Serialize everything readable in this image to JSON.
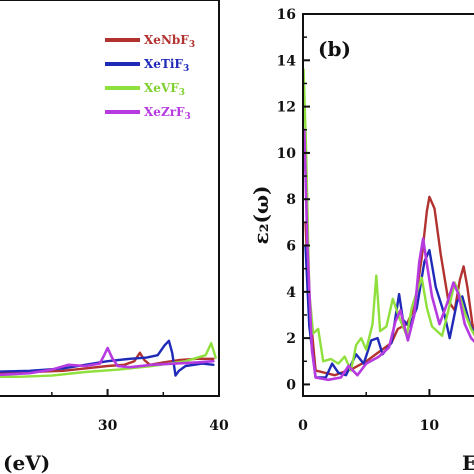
{
  "chart_data": [
    {
      "type": "line",
      "panel_label": "",
      "xlabel": "(eV)",
      "ylabel": "",
      "xlim": [
        19,
        40
      ],
      "ylim": [
        -0.5,
        16
      ],
      "x_ticks": [
        30,
        40
      ],
      "legend": {
        "placement": "top-right"
      },
      "colors": {
        "XeNbF3": "#b2322f",
        "XeTiF3": "#1f2ab8",
        "XeVF3": "#8fe03c",
        "XeZrF3": "#b63ae0"
      },
      "series": [
        {
          "name": "XeNbF3",
          "color": "#b2322f",
          "width": 2.4,
          "points": [
            [
              19,
              0.45
            ],
            [
              23,
              0.5
            ],
            [
              26,
              0.55
            ],
            [
              28,
              0.65
            ],
            [
              30,
              0.75
            ],
            [
              31.5,
              0.8
            ],
            [
              32.4,
              0.95
            ],
            [
              32.9,
              1.3
            ],
            [
              33.3,
              1.0
            ],
            [
              33.8,
              0.8
            ],
            [
              35,
              0.9
            ],
            [
              36.5,
              1.0
            ],
            [
              38,
              1.05
            ],
            [
              39.5,
              1.05
            ]
          ]
        },
        {
          "name": "XeTiF3",
          "color": "#1f2ab8",
          "width": 2.4,
          "points": [
            [
              19,
              0.5
            ],
            [
              23,
              0.55
            ],
            [
              26,
              0.65
            ],
            [
              28,
              0.8
            ],
            [
              30,
              0.95
            ],
            [
              32,
              1.05
            ],
            [
              33.5,
              1.1
            ],
            [
              34.5,
              1.2
            ],
            [
              35.1,
              1.6
            ],
            [
              35.5,
              1.8
            ],
            [
              35.8,
              1.3
            ],
            [
              36.1,
              0.35
            ],
            [
              36.4,
              0.55
            ],
            [
              37,
              0.75
            ],
            [
              38.5,
              0.85
            ],
            [
              39.5,
              0.8
            ]
          ]
        },
        {
          "name": "XeVF3",
          "color": "#8fe03c",
          "width": 2.4,
          "points": [
            [
              19,
              0.3
            ],
            [
              22,
              0.3
            ],
            [
              25,
              0.35
            ],
            [
              28,
              0.5
            ],
            [
              31,
              0.6
            ],
            [
              34,
              0.75
            ],
            [
              37,
              0.95
            ],
            [
              38.8,
              1.2
            ],
            [
              39.3,
              1.7
            ],
            [
              39.7,
              1.1
            ]
          ]
        },
        {
          "name": "XeZrF3",
          "color": "#b63ae0",
          "width": 2.6,
          "points": [
            [
              19,
              0.35
            ],
            [
              21,
              0.4
            ],
            [
              23,
              0.45
            ],
            [
              25,
              0.6
            ],
            [
              26.5,
              0.8
            ],
            [
              28,
              0.75
            ],
            [
              29.3,
              0.85
            ],
            [
              29.7,
              1.2
            ],
            [
              30,
              1.5
            ],
            [
              30.4,
              1.1
            ],
            [
              30.9,
              0.75
            ],
            [
              32,
              0.7
            ],
            [
              34,
              0.8
            ],
            [
              36,
              0.85
            ],
            [
              38,
              0.9
            ],
            [
              39.5,
              0.95
            ]
          ]
        }
      ]
    },
    {
      "type": "line",
      "panel_label": "(b)",
      "xlabel": "E",
      "ylabel": "ε₂(ω)",
      "xlim": [
        0,
        14
      ],
      "ylim": [
        -0.5,
        16
      ],
      "x_ticks": [
        0,
        10
      ],
      "y_ticks": [
        0,
        2,
        4,
        6,
        8,
        10,
        12,
        14,
        16
      ],
      "series": [
        {
          "name": "XeNbF3",
          "color": "#b2322f",
          "width": 2.4,
          "points": [
            [
              0.2,
              7
            ],
            [
              0.5,
              3.5
            ],
            [
              1.0,
              0.6
            ],
            [
              2.5,
              0.4
            ],
            [
              4,
              0.7
            ],
            [
              5,
              1.0
            ],
            [
              6,
              1.4
            ],
            [
              7,
              1.8
            ],
            [
              7.5,
              2.4
            ],
            [
              8.2,
              2.6
            ],
            [
              8.8,
              3.3
            ],
            [
              9.4,
              5.5
            ],
            [
              9.8,
              7.5
            ],
            [
              10,
              8.1
            ],
            [
              10.4,
              7.6
            ],
            [
              10.9,
              5.6
            ],
            [
              11.5,
              3.6
            ],
            [
              12.0,
              3.2
            ],
            [
              12.4,
              4.5
            ],
            [
              12.7,
              5.1
            ],
            [
              13.0,
              4.2
            ],
            [
              13.4,
              2.6
            ],
            [
              14,
              1.9
            ]
          ]
        },
        {
          "name": "XeTiF3",
          "color": "#1f2ab8",
          "width": 2.4,
          "points": [
            [
              0.2,
              6
            ],
            [
              0.5,
              2.5
            ],
            [
              1.0,
              0.3
            ],
            [
              1.8,
              0.3
            ],
            [
              2.3,
              0.9
            ],
            [
              2.8,
              0.5
            ],
            [
              3.4,
              0.4
            ],
            [
              4.2,
              1.3
            ],
            [
              4.8,
              0.9
            ],
            [
              5.4,
              1.9
            ],
            [
              5.9,
              2.0
            ],
            [
              6.3,
              1.3
            ],
            [
              7,
              1.8
            ],
            [
              7.6,
              3.9
            ],
            [
              7.9,
              2.8
            ],
            [
              8.4,
              2.5
            ],
            [
              9.0,
              3.3
            ],
            [
              9.6,
              5.3
            ],
            [
              10.0,
              5.8
            ],
            [
              10.5,
              4.2
            ],
            [
              11.2,
              3.0
            ],
            [
              11.6,
              2.0
            ],
            [
              12.2,
              3.6
            ],
            [
              12.6,
              3.8
            ],
            [
              13.2,
              2.6
            ],
            [
              14,
              1.7
            ]
          ]
        },
        {
          "name": "XeVF3",
          "color": "#8fe03c",
          "width": 2.4,
          "points": [
            [
              0.05,
              13.6
            ],
            [
              0.25,
              10
            ],
            [
              0.5,
              4
            ],
            [
              0.8,
              2.2
            ],
            [
              1.2,
              2.4
            ],
            [
              1.6,
              1.0
            ],
            [
              2.2,
              1.1
            ],
            [
              2.8,
              0.9
            ],
            [
              3.3,
              1.2
            ],
            [
              3.8,
              0.6
            ],
            [
              4.2,
              1.7
            ],
            [
              4.6,
              2.0
            ],
            [
              5.0,
              1.5
            ],
            [
              5.5,
              2.6
            ],
            [
              5.8,
              4.7
            ],
            [
              6.1,
              2.3
            ],
            [
              6.6,
              2.5
            ],
            [
              7.1,
              3.7
            ],
            [
              7.6,
              2.9
            ],
            [
              8.2,
              2.1
            ],
            [
              8.6,
              3.3
            ],
            [
              9.0,
              4.0
            ],
            [
              9.4,
              4.6
            ],
            [
              9.8,
              3.3
            ],
            [
              10.2,
              2.5
            ],
            [
              11.0,
              2.1
            ],
            [
              11.5,
              3.2
            ],
            [
              12.0,
              4.4
            ],
            [
              12.3,
              4.0
            ],
            [
              12.8,
              3.1
            ],
            [
              13.3,
              2.4
            ],
            [
              14,
              1.7
            ]
          ]
        },
        {
          "name": "XeZrF3",
          "color": "#b63ae0",
          "width": 2.6,
          "points": [
            [
              0.1,
              11
            ],
            [
              0.35,
              6
            ],
            [
              0.7,
              1.5
            ],
            [
              1.0,
              0.3
            ],
            [
              2.0,
              0.2
            ],
            [
              3.0,
              0.3
            ],
            [
              3.6,
              0.8
            ],
            [
              4.3,
              0.4
            ],
            [
              5,
              0.9
            ],
            [
              6,
              1.2
            ],
            [
              6.8,
              1.6
            ],
            [
              7.3,
              2.7
            ],
            [
              7.7,
              3.2
            ],
            [
              8.3,
              1.9
            ],
            [
              8.8,
              3.0
            ],
            [
              9.2,
              5.3
            ],
            [
              9.5,
              6.3
            ],
            [
              9.8,
              5.2
            ],
            [
              10.2,
              3.8
            ],
            [
              10.8,
              2.6
            ],
            [
              11.4,
              3.5
            ],
            [
              11.9,
              4.4
            ],
            [
              12.3,
              3.9
            ],
            [
              12.8,
              2.6
            ],
            [
              13.3,
              2.0
            ],
            [
              14,
              1.6
            ]
          ]
        }
      ]
    }
  ]
}
